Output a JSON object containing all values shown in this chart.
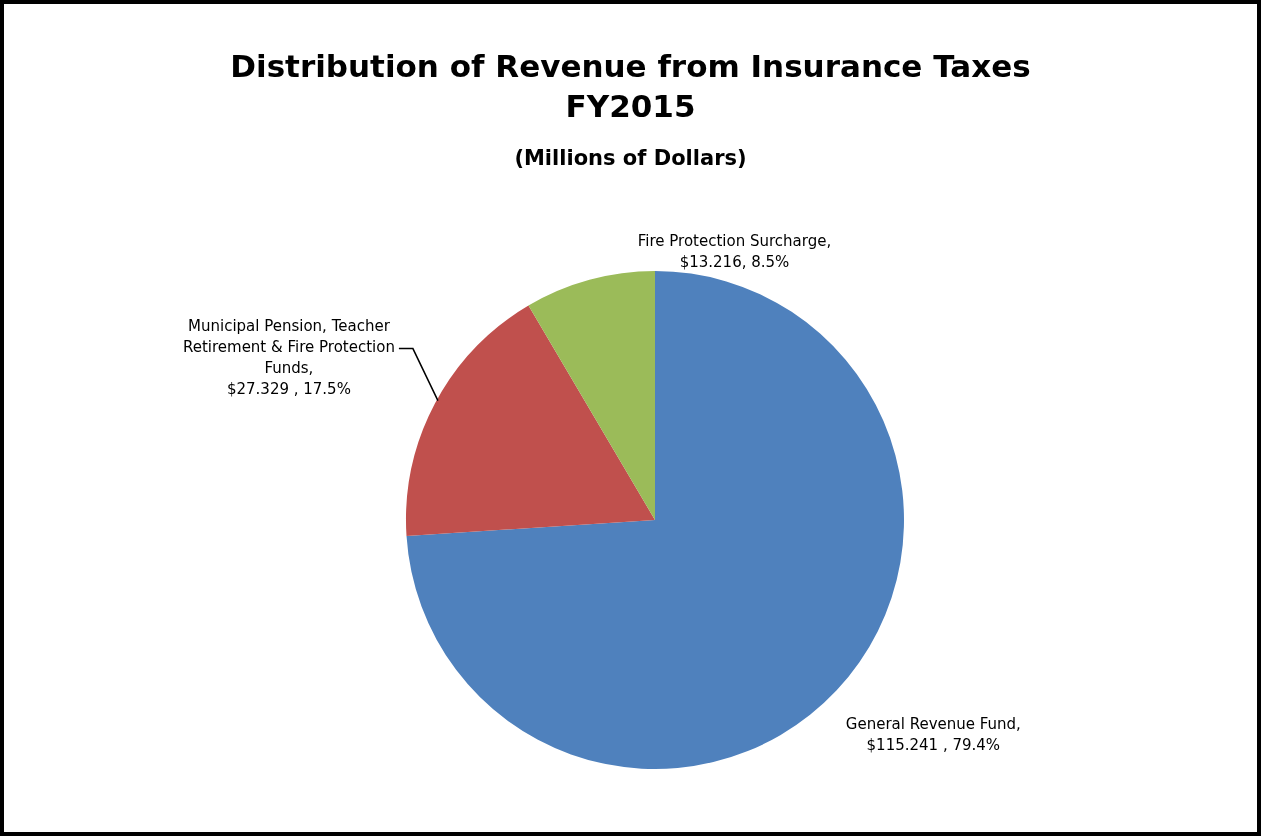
{
  "chart_data": {
    "type": "pie",
    "title": "Distribution of Revenue from Insurance Taxes\nFY2015",
    "subtitle": "(Millions of Dollars)",
    "categories": [
      "General Revenue Fund",
      "Municipal Pension, Teacher Retirement & Fire Protection Funds",
      "Fire Protection Surcharge"
    ],
    "values": [
      115.241,
      27.329,
      13.216
    ],
    "value_labels": [
      ", $115.241 , 79.4%",
      ", $27.329 , 17.5%",
      ", $13.216, 8.5%"
    ],
    "colors": [
      "#4f81bd",
      "#c0504d",
      "#9bbb59"
    ],
    "legend": false
  }
}
